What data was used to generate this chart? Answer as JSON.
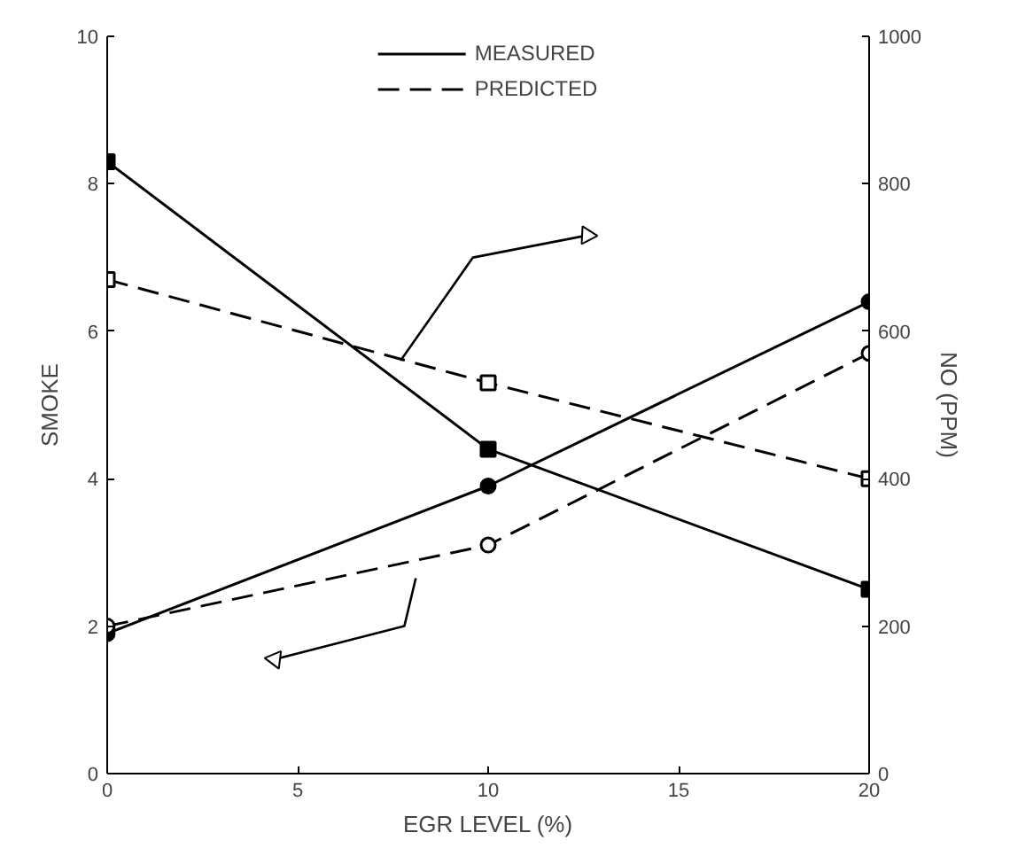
{
  "chart_data": {
    "type": "line",
    "xlabel": "EGR LEVEL (%)",
    "ylabel": "SMOKE",
    "y2label": "NO (PPM)",
    "x": [
      0,
      10,
      20
    ],
    "xlim": [
      0,
      20
    ],
    "xticks": [
      0,
      5,
      10,
      15,
      20
    ],
    "ylim": [
      0,
      10
    ],
    "yticks": [
      0,
      2,
      4,
      6,
      8,
      10
    ],
    "y2lim": [
      0,
      1000
    ],
    "y2ticks": [
      0,
      200,
      400,
      600,
      800,
      1000
    ],
    "grid": false,
    "legend": "top",
    "series": [
      {
        "name": "MEASURED",
        "color": "#000000",
        "values": [
          8.3,
          4.4,
          2.5
        ],
        "marker": "square",
        "line_style": "solid"
      },
      {
        "name": "PREDICTED",
        "color": "#000000",
        "values": [
          6.7,
          5.3,
          4.0
        ],
        "marker": "square",
        "line_style": "dashed"
      },
      {
        "color": "#000000",
        "values": [
          190,
          390,
          640
        ],
        "marker": "circle",
        "line_style": "solid",
        "axis": "y2"
      },
      {
        "color": "#000000",
        "values": [
          200,
          310,
          570
        ],
        "marker": "circle",
        "line_style": "dashed",
        "axis": "y2"
      }
    ]
  }
}
